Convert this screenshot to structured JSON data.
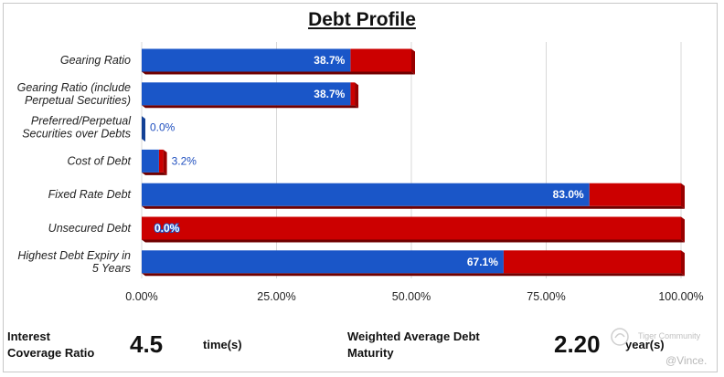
{
  "chart_data": {
    "type": "bar",
    "orientation": "horizontal",
    "stacked_to": 100,
    "title": "Debt Profile",
    "categories": [
      [
        "Gearing Ratio"
      ],
      [
        "Gearing Ratio (include",
        "Perpetual Securities)"
      ],
      [
        "Preferred/Perpetual",
        "Securities over Debts"
      ],
      [
        "Cost of Debt"
      ],
      [
        "Fixed Rate Debt"
      ],
      [
        "Unsecured Debt"
      ],
      [
        "Highest Debt Expiry in",
        "5 Years"
      ]
    ],
    "series": [
      {
        "name": "Value",
        "color": "#1a56c8",
        "values": [
          38.7,
          38.7,
          0.0,
          3.2,
          83.0,
          0.0,
          67.1
        ]
      },
      {
        "name": "Remainder",
        "color": "#cc0000",
        "values": [
          11.3,
          0.8,
          0.0,
          0.8,
          17.0,
          100.0,
          32.9
        ]
      }
    ],
    "value_labels": [
      "38.7%",
      "38.7%",
      "0.0%",
      "3.2%",
      "83.0%",
      "0.0%",
      "67.1%"
    ],
    "xticks": [
      "0.00%",
      "25.00%",
      "50.00%",
      "75.00%",
      "100.00%"
    ],
    "xlim": [
      0,
      100
    ],
    "grid": true
  },
  "metrics": {
    "coverage": {
      "label_line1": "Interest",
      "label_line2": "Coverage Ratio",
      "value": "4.5",
      "unit": "time(s)"
    },
    "maturity": {
      "label_line1": "Weighted Average Debt",
      "label_line2": "Maturity",
      "value": "2.20",
      "unit": "year(s)"
    }
  },
  "watermark": {
    "brand": "Tiger Community",
    "user": "@Vince."
  }
}
